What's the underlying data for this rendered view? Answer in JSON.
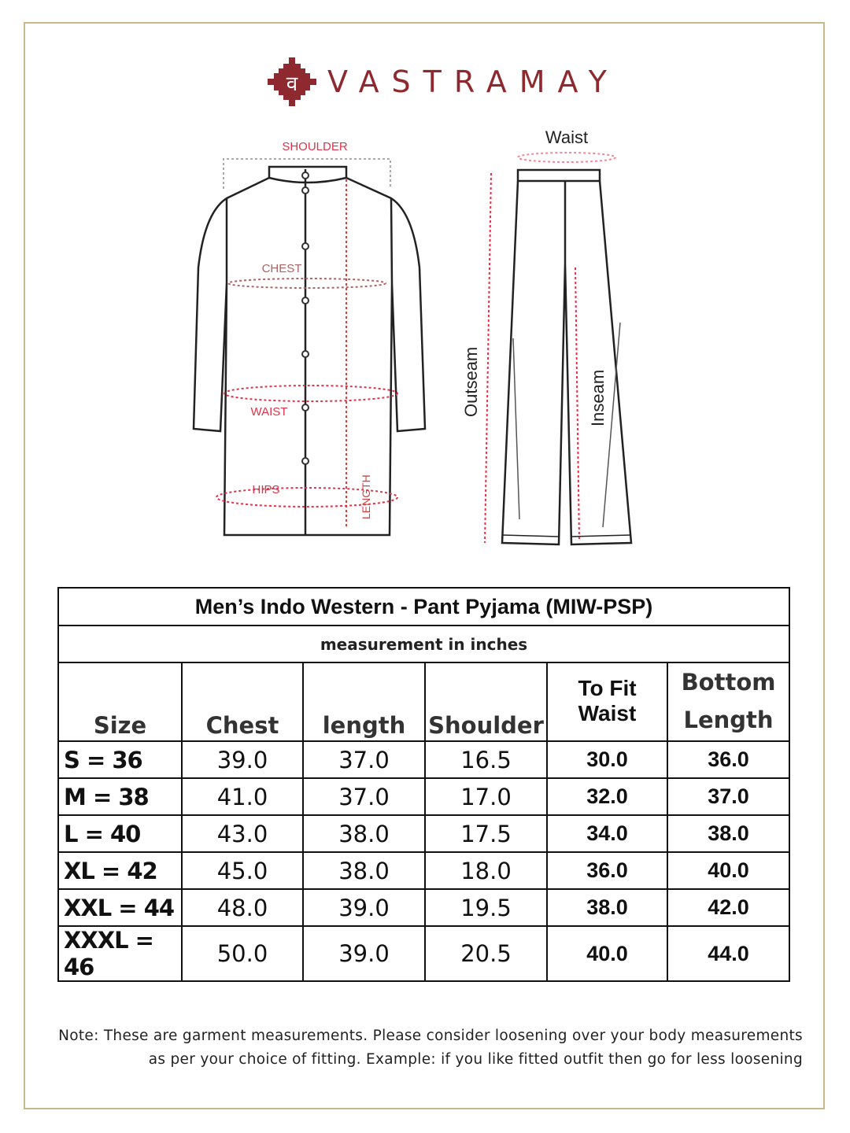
{
  "brand": {
    "name": "VASTRAMAY",
    "logo_glyph": "व",
    "color": "#8e2a2f"
  },
  "diagram": {
    "kurta_labels": {
      "shoulder": "SHOULDER",
      "chest": "CHEST",
      "waist": "WAIST",
      "hips": "HIPS",
      "length": "LENGTH"
    },
    "pant_labels": {
      "waist": "Waist",
      "outseam": "Outseam",
      "inseam": "Inseam"
    },
    "label_color": "#e0334a"
  },
  "table": {
    "title": "Men’s Indo Western - Pant Pyjama (MIW-PSP)",
    "subtitle": "measurement in inches",
    "headers": [
      "Size",
      "Chest",
      "length",
      "Shoulder",
      "To Fit Waist",
      "Bottom Length"
    ],
    "header_lines": {
      "to_fit_1": "To Fit",
      "to_fit_2": "Waist",
      "bottom_1": "Bottom",
      "bottom_2": "Length"
    },
    "rows": [
      [
        "S = 36",
        "39.0",
        "37.0",
        "16.5",
        "30.0",
        "36.0"
      ],
      [
        "M = 38",
        "41.0",
        "37.0",
        "17.0",
        "32.0",
        "37.0"
      ],
      [
        "L = 40",
        "43.0",
        "38.0",
        "17.5",
        "34.0",
        "38.0"
      ],
      [
        "XL = 42",
        "45.0",
        "38.0",
        "18.0",
        "36.0",
        "40.0"
      ],
      [
        "XXL = 44",
        "48.0",
        "39.0",
        "19.5",
        "38.0",
        "42.0"
      ],
      [
        "XXXL = 46",
        "50.0",
        "39.0",
        "20.5",
        "40.0",
        "44.0"
      ]
    ]
  },
  "note": {
    "line1": "Note: These are garment measurements. Please consider loosening over your body measurements",
    "line2": "as per your choice of fitting. Example: if you like fitted outfit then go for less loosening"
  }
}
